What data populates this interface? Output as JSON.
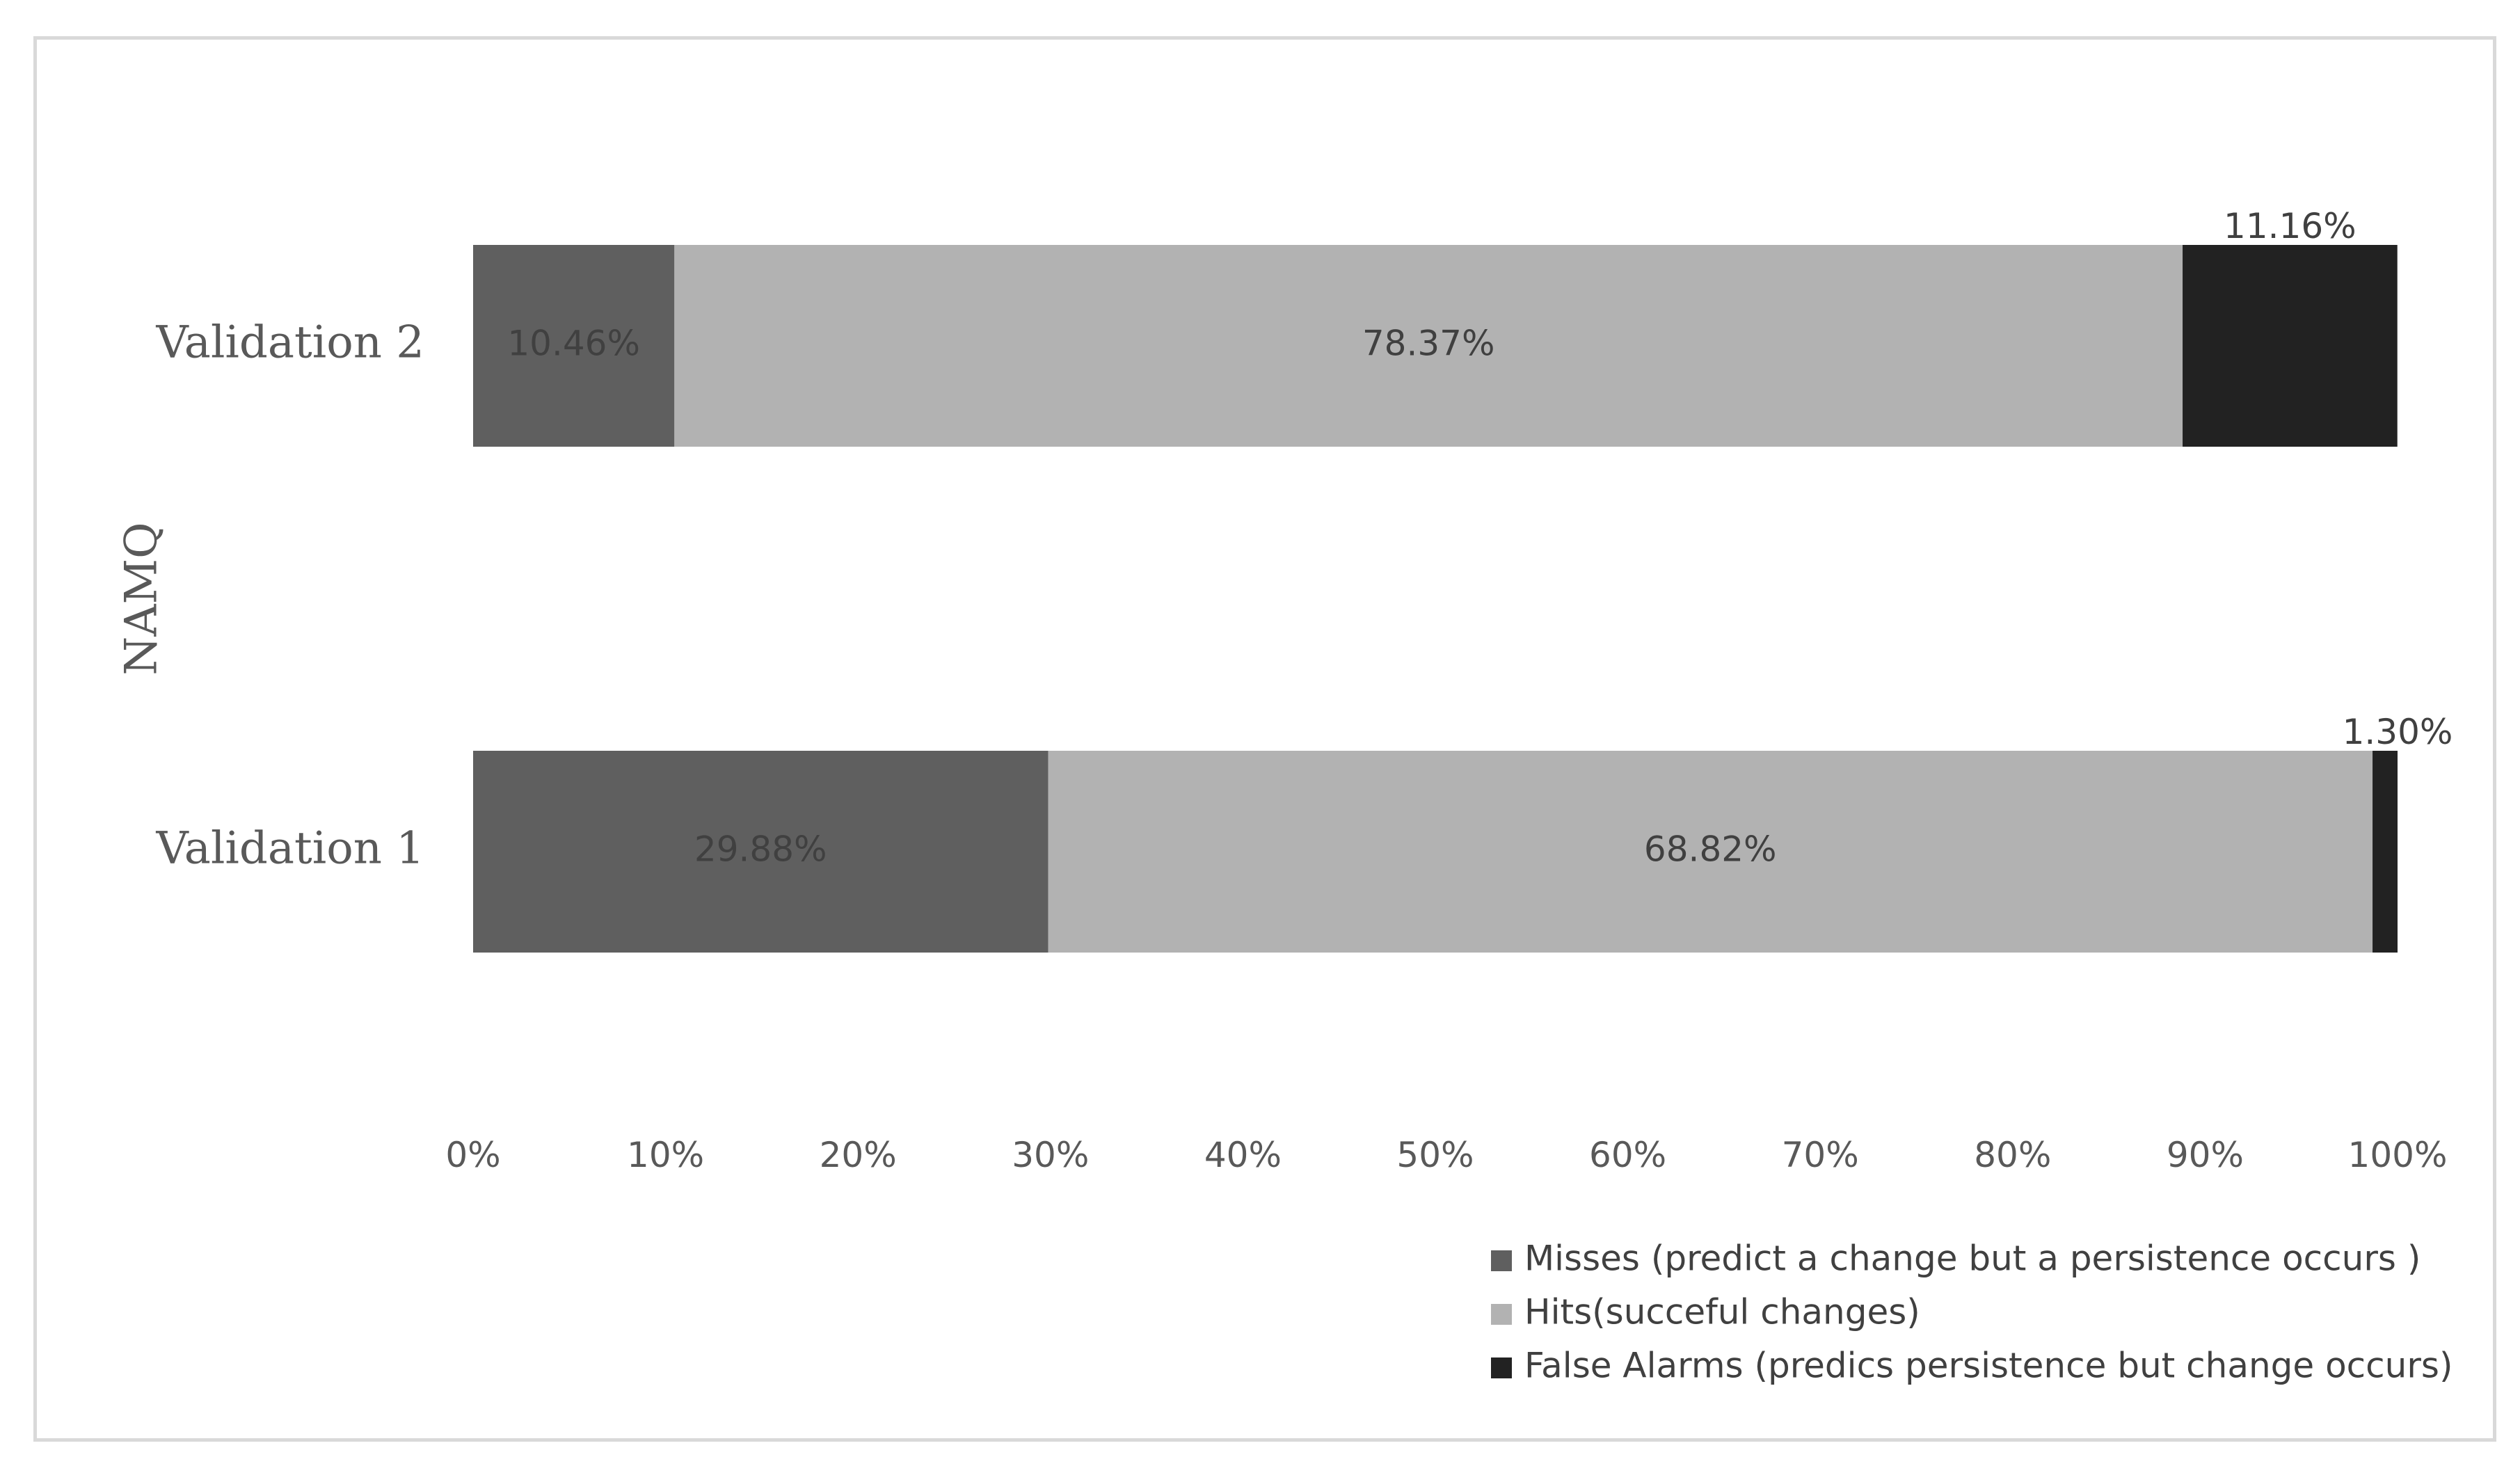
{
  "chart_data": {
    "type": "bar",
    "orientation": "horizontal",
    "stacked": "percent",
    "categories": [
      "Validation 2",
      "Validation 1"
    ],
    "series": [
      {
        "name": "Misses (predict a change but a persistence occurs )",
        "color": "#5f5f5f",
        "label_color": "#404040",
        "values": [
          10.46,
          29.88
        ],
        "labels": [
          "10.46%",
          "29.88%"
        ],
        "label_position": "center"
      },
      {
        "name": "Hits(succeful changes)",
        "color": "#b2b2b2",
        "label_color": "#404040",
        "values": [
          78.37,
          68.82
        ],
        "labels": [
          "78.37%",
          "68.82%"
        ],
        "label_position": "center"
      },
      {
        "name": "False Alarms (predics persistence but change occurs)",
        "color": "#222222",
        "label_color": "#404040",
        "values": [
          11.16,
          1.3
        ],
        "labels": [
          "11.16%",
          "1.30%"
        ],
        "label_position": "above"
      }
    ],
    "title": "",
    "xlabel": "",
    "ylabel": "NAMQ",
    "xlim": [
      0,
      100
    ],
    "xticks": [
      0,
      10,
      20,
      30,
      40,
      50,
      60,
      70,
      80,
      90,
      100
    ],
    "xtick_labels": [
      "0%",
      "10%",
      "20%",
      "30%",
      "40%",
      "50%",
      "60%",
      "70%",
      "80%",
      "90%",
      "100%"
    ],
    "grid": false,
    "legend_position": "bottom-right"
  }
}
